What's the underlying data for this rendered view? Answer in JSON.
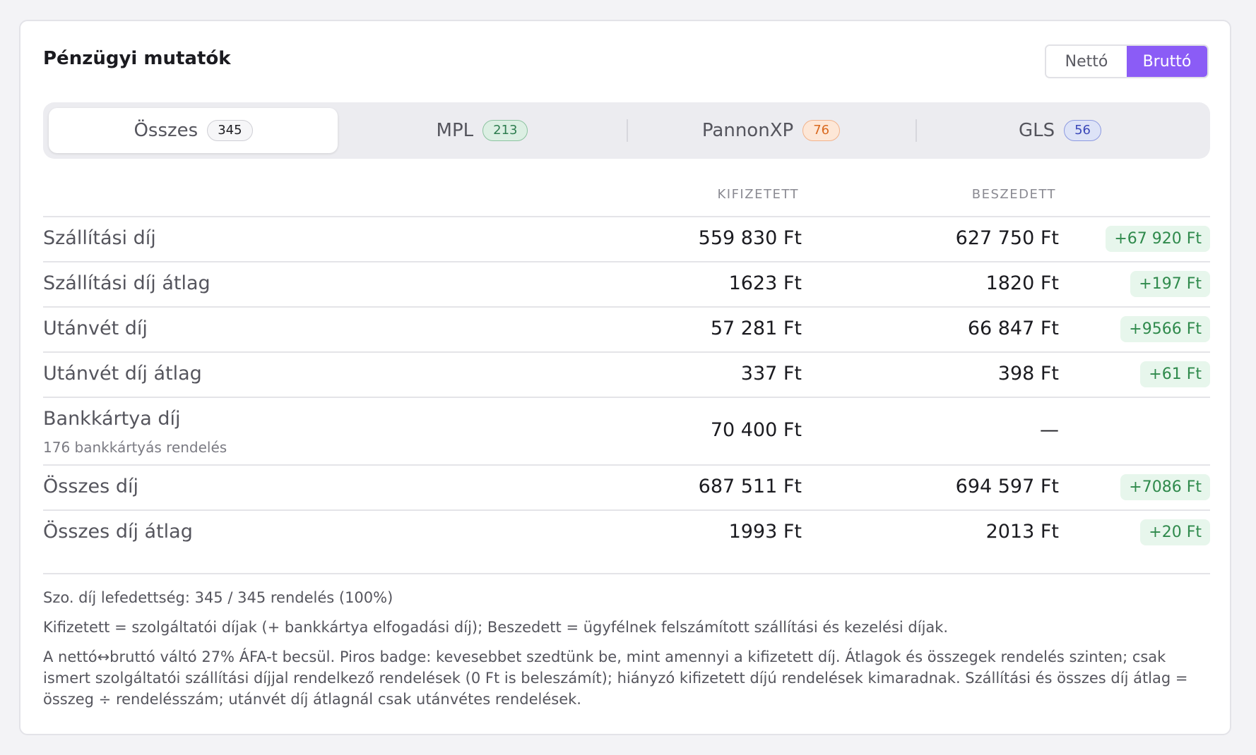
{
  "header": {
    "title": "Pénzügyi mutatók",
    "toggle": {
      "options": [
        "Nettó",
        "Bruttó"
      ],
      "selected": "Bruttó"
    }
  },
  "tabs": [
    {
      "label": "Összes",
      "count": "345",
      "active": true
    },
    {
      "label": "MPL",
      "count": "213",
      "active": false
    },
    {
      "label": "PannonXP",
      "count": "76",
      "active": false
    },
    {
      "label": "GLS",
      "count": "56",
      "active": false
    }
  ],
  "table": {
    "headers": {
      "paid": "KIFIZETETT",
      "collected": "BESZEDETT"
    },
    "rows": [
      {
        "label": "Szállítási díj",
        "paid": "559 830 Ft",
        "collected": "627 750 Ft",
        "delta": "+67 920 Ft"
      },
      {
        "label": "Szállítási díj átlag",
        "paid": "1623 Ft",
        "collected": "1820 Ft",
        "delta": "+197 Ft"
      },
      {
        "label": "Utánvét díj",
        "paid": "57 281 Ft",
        "collected": "66 847 Ft",
        "delta": "+9566 Ft"
      },
      {
        "label": "Utánvét díj átlag",
        "paid": "337 Ft",
        "collected": "398 Ft",
        "delta": "+61 Ft"
      },
      {
        "label": "Bankkártya díj",
        "sublabel": "176 bankkártyás rendelés",
        "paid": "70 400 Ft",
        "collected": "—",
        "delta": ""
      },
      {
        "label": "Összes díj",
        "paid": "687 511 Ft",
        "collected": "694 597 Ft",
        "delta": "+7086 Ft"
      },
      {
        "label": "Összes díj átlag",
        "paid": "1993 Ft",
        "collected": "2013 Ft",
        "delta": "+20 Ft"
      }
    ]
  },
  "footer": {
    "coverage": "Szo. díj lefedettség: 345 / 345 rendelés (100%)",
    "definition": "Kifizetett = szolgáltatói díjak (+ bankkártya elfogadási díj); Beszedett = ügyfélnek felszámított szállítási és kezelési díjak.",
    "note": "A nettó↔bruttó váltó 27% ÁFA-t becsül. Piros badge: kevesebbet szedtünk be, mint amennyi a kifizetett díj. Átlagok és összegek rendelés szinten; csak ismert szolgáltatói szállítási díjjal rendelkező rendelések (0 Ft is beleszámít); hiányzó kifizetett díjú rendelések kimaradnak. Szállítási és összes díj átlag = összeg ÷ rendelésszám; utánvét díj átlagnál csak utánvétes rendelések."
  },
  "colors": {
    "accent": "#8b5cf6",
    "positive": "#2f8a4c",
    "positive_bg": "#e7f6ec"
  }
}
